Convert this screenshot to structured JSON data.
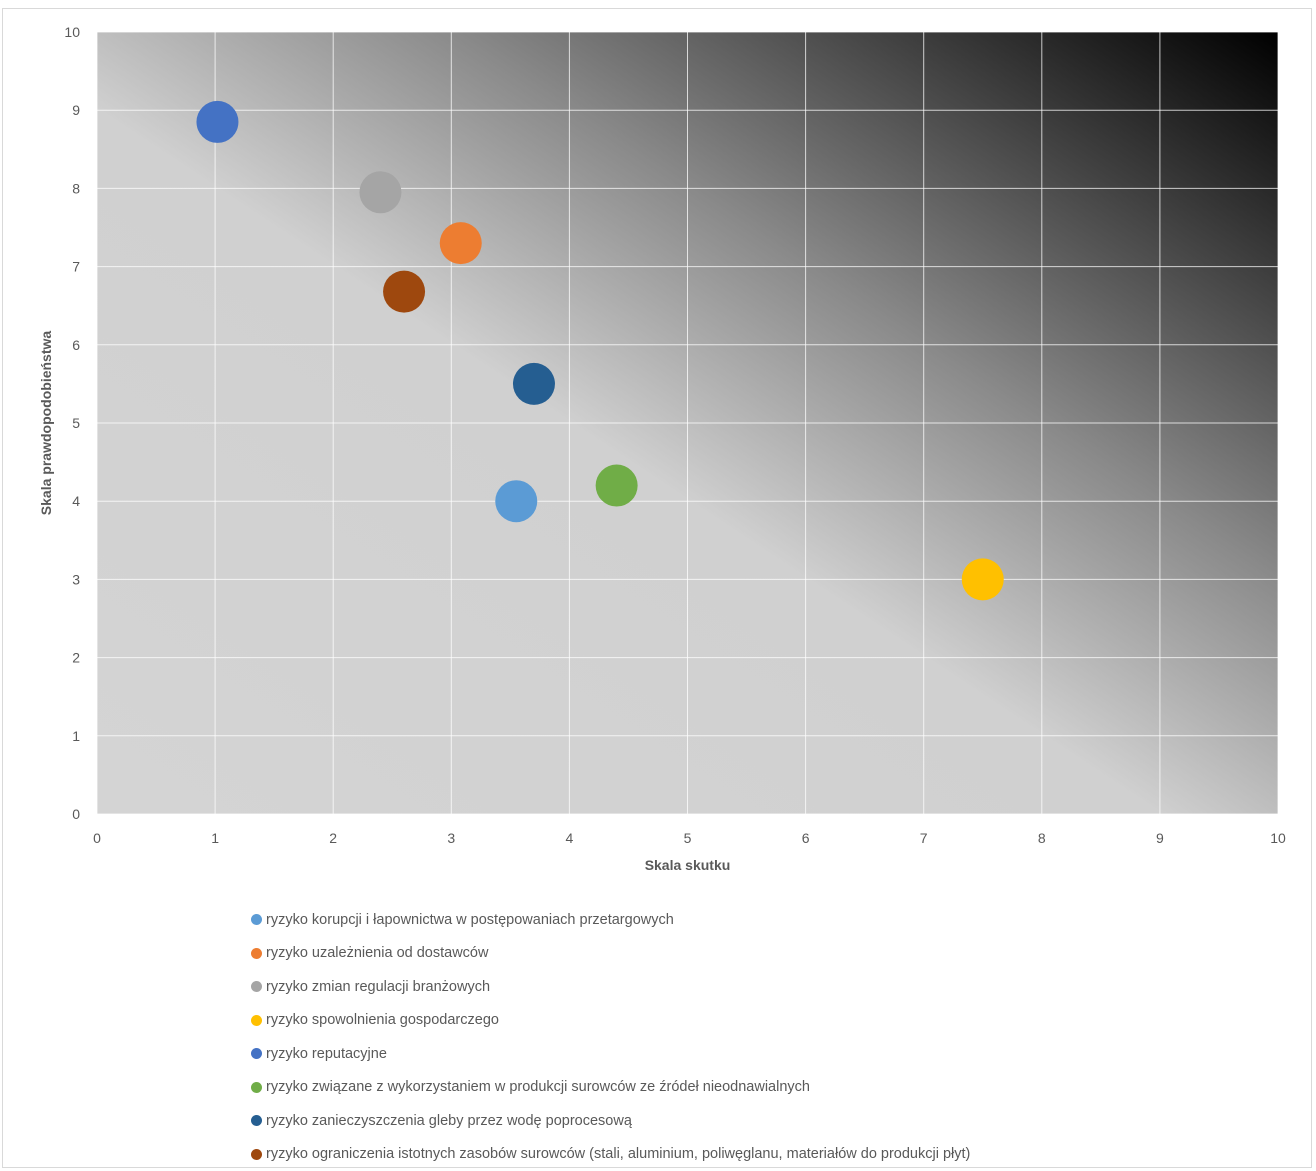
{
  "chart_data": {
    "type": "scatter",
    "xlabel": "Skala skutku",
    "ylabel": "Skala prawdopodobieństwa",
    "xlim": [
      0,
      10
    ],
    "ylim": [
      0,
      10
    ],
    "x_ticks": [
      "0",
      "1",
      "2",
      "3",
      "4",
      "5",
      "6",
      "7",
      "8",
      "9",
      "10"
    ],
    "y_ticks": [
      "0",
      "1",
      "2",
      "3",
      "4",
      "5",
      "6",
      "7",
      "8",
      "9",
      "10"
    ],
    "grid": true,
    "background": "diagonal gradient from light grey (bottom-left) to black (top-right)",
    "legend_position": "bottom",
    "series": [
      {
        "name": "ryzyko korupcji i łapownictwa w postępowaniach przetargowych",
        "x": 3.55,
        "y": 4.0,
        "color": "#5B9BD5"
      },
      {
        "name": "ryzyko uzależnienia od dostawców",
        "x": 3.08,
        "y": 7.3,
        "color": "#ED7D31"
      },
      {
        "name": "ryzyko zmian regulacji branżowych",
        "x": 2.4,
        "y": 7.95,
        "color": "#A5A5A5"
      },
      {
        "name": "ryzyko spowolnienia gospodarczego",
        "x": 7.5,
        "y": 3.0,
        "color": "#FFC000"
      },
      {
        "name": "ryzyko reputacyjne",
        "x": 1.02,
        "y": 8.85,
        "color": "#4472C4"
      },
      {
        "name": "ryzyko związane z wykorzystaniem w produkcji surowców ze źródeł nieodnawialnych",
        "x": 4.4,
        "y": 4.2,
        "color": "#70AD47"
      },
      {
        "name": "ryzyko zanieczyszczenia gleby przez wodę poprocesową",
        "x": 3.7,
        "y": 5.5,
        "color": "#255E91"
      },
      {
        "name": "ryzyko ograniczenia istotnych zasobów surowców (stali, aluminium, poliwęglanu, materiałów do produkcji płyt)",
        "x": 2.6,
        "y": 6.68,
        "color": "#9E480E"
      }
    ]
  }
}
